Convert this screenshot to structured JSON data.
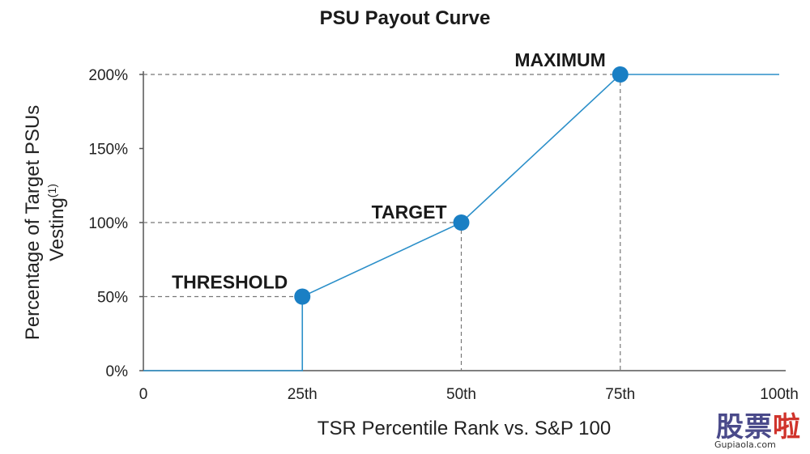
{
  "chart_data": {
    "type": "line",
    "title": "PSU Payout Curve",
    "xlabel": "TSR Percentile Rank vs. S&P 100",
    "ylabel_lines": [
      "Percentage of Target PSUs",
      "Vesting"
    ],
    "ylabel_superscript": "(1)",
    "xlim": [
      0,
      100
    ],
    "ylim": [
      0,
      200
    ],
    "x_ticks": [
      {
        "value": 0,
        "label": "0"
      },
      {
        "value": 25,
        "label": "25th"
      },
      {
        "value": 50,
        "label": "50th"
      },
      {
        "value": 75,
        "label": "75th"
      },
      {
        "value": 100,
        "label": "100th"
      }
    ],
    "y_ticks": [
      {
        "value": 0,
        "label": "0%"
      },
      {
        "value": 50,
        "label": "50%"
      },
      {
        "value": 100,
        "label": "100%"
      },
      {
        "value": 150,
        "label": "150%"
      },
      {
        "value": 200,
        "label": "200%"
      }
    ],
    "series": [
      {
        "x": [
          0,
          25,
          25,
          50,
          75,
          100
        ],
        "y": [
          0,
          0,
          50,
          100,
          200,
          200
        ],
        "color": "#2b8fc9"
      }
    ],
    "markers": [
      {
        "x": 25,
        "y": 50,
        "label": "THRESHOLD"
      },
      {
        "x": 50,
        "y": 100,
        "label": "TARGET"
      },
      {
        "x": 75,
        "y": 200,
        "label": "MAXIMUM"
      }
    ],
    "marker_color": "#1a7fc4",
    "grid": false
  },
  "watermark": {
    "text_main": "股票",
    "text_accent": "啦",
    "url": "Gupiaola.com"
  }
}
